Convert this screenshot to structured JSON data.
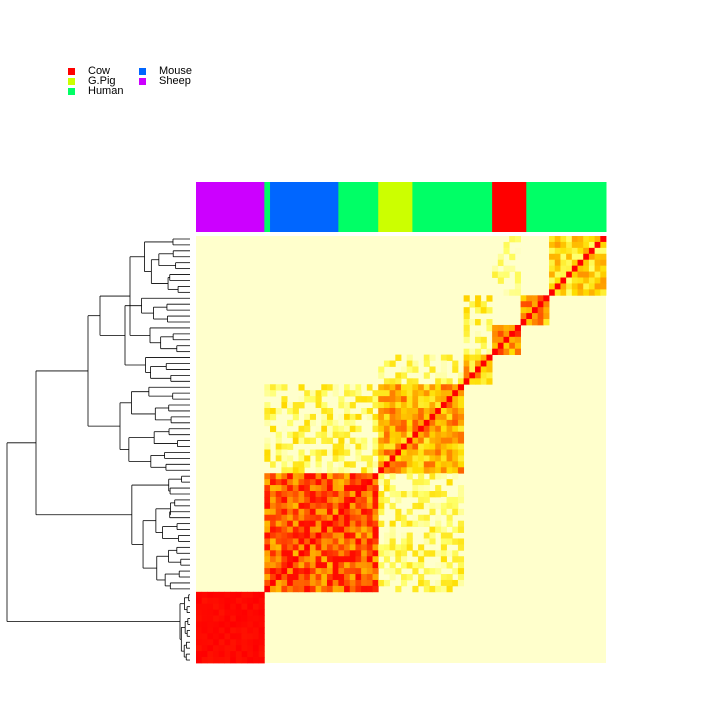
{
  "chart_data": {
    "type": "heatmap",
    "title": "",
    "description_role": "clustered similarity heatmap with species color bar and row dendrogram",
    "legend": {
      "placement": "top-left",
      "entries": [
        {
          "label": "Cow",
          "color": "#ff0000"
        },
        {
          "label": "G.Pig",
          "color": "#ccff00"
        },
        {
          "label": "Human",
          "color": "#00ff66"
        },
        {
          "label": "Mouse",
          "color": "#0066ff"
        },
        {
          "label": "Sheep",
          "color": "#cc00ff"
        }
      ]
    },
    "color_scale": {
      "low": "#ffffcc",
      "mid_low": "#ffff66",
      "mid": "#ffcc00",
      "mid_high": "#ff9900",
      "high": "#ff0000"
    },
    "n_samples": 72,
    "column_annotation": [
      {
        "species": "Sheep",
        "count": 12
      },
      {
        "species": "Human",
        "count": 1
      },
      {
        "species": "Mouse",
        "count": 12
      },
      {
        "species": "Human",
        "count": 7
      },
      {
        "species": "G.Pig",
        "count": 6
      },
      {
        "species": "Human",
        "count": 14
      },
      {
        "species": "Cow",
        "count": 6
      },
      {
        "species": "Human",
        "count": 14
      }
    ],
    "clusters_in_column_order": [
      {
        "name": "sheep",
        "count": 12,
        "within_similarity": 1.0
      },
      {
        "name": "mouse_human",
        "count": 20,
        "within_similarity": 0.82
      },
      {
        "name": "gpig_human",
        "count": 15,
        "within_similarity": 0.62
      },
      {
        "name": "human_a",
        "count": 5,
        "within_similarity": 0.55
      },
      {
        "name": "cow",
        "count": 5,
        "within_similarity": 0.72
      },
      {
        "name": "human_b",
        "count": 5,
        "within_similarity": 0.65
      },
      {
        "name": "human_c",
        "count": 10,
        "within_similarity": 0.5
      }
    ],
    "off_diagonal_blocks": [
      {
        "rows": "gpig_human",
        "cols": "mouse_human",
        "similarity": 0.25
      },
      {
        "rows": "mouse_human",
        "cols": "gpig_human",
        "similarity": 0.22
      },
      {
        "rows": "human_a",
        "cols": "gpig_human",
        "similarity": 0.2
      },
      {
        "rows": "human_b",
        "cols": "human_a",
        "similarity": 0.28
      },
      {
        "rows": "cow",
        "cols": "human_a",
        "similarity": 0.2
      },
      {
        "rows": "human_c",
        "cols": "cow",
        "similarity": 0.15
      }
    ]
  }
}
